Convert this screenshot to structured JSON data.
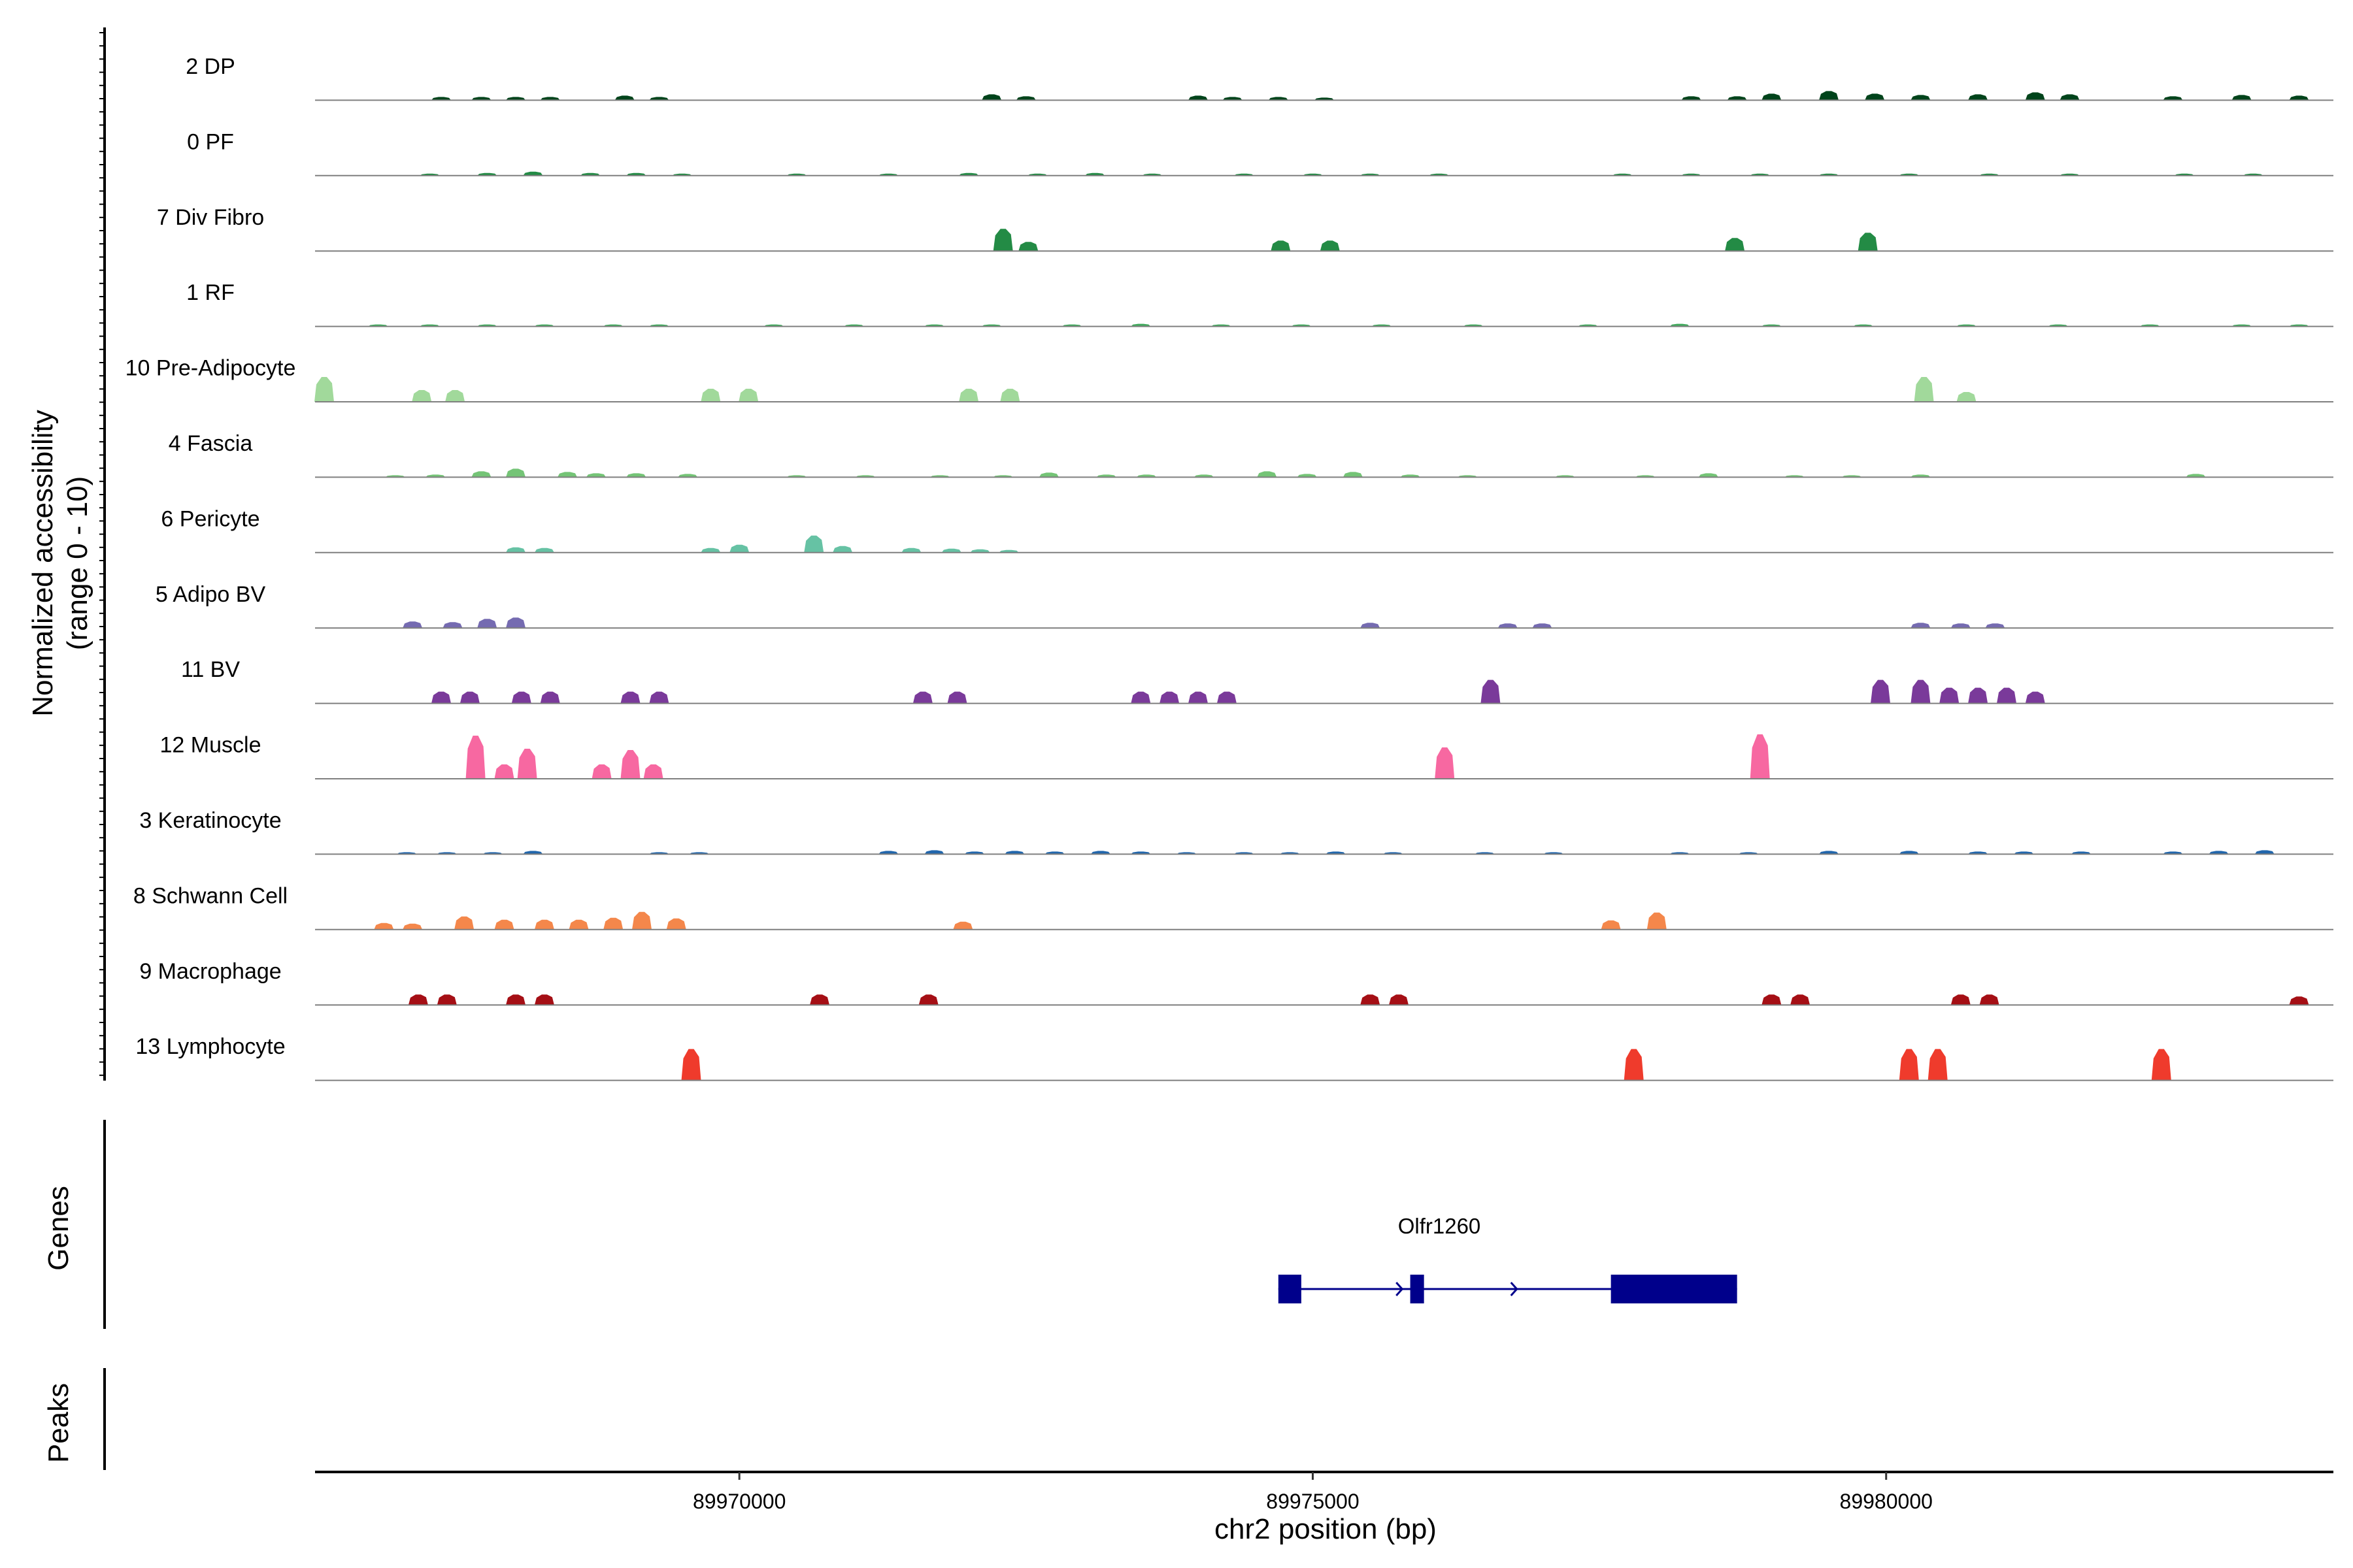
{
  "chart_data": {
    "type": "area",
    "title": "",
    "xlabel": "chr2 position (bp)",
    "ylabel_line1": "Normalized accessibility",
    "ylabel_line2": "(range 0 - 10)",
    "xlim": [
      89966300,
      89983900
    ],
    "ylim": [
      0,
      10
    ],
    "x_ticks": [
      {
        "value": 89970000,
        "label": "89970000"
      },
      {
        "value": 89975000,
        "label": "89975000"
      },
      {
        "value": 89980000,
        "label": "89980000"
      }
    ],
    "series": [
      {
        "name": "2 DP",
        "color": "#00441b",
        "peaks": [
          [
            89967400,
            0.5
          ],
          [
            89967750,
            0.5
          ],
          [
            89968050,
            0.5
          ],
          [
            89968350,
            0.5
          ],
          [
            89969000,
            0.7
          ],
          [
            89969300,
            0.5
          ],
          [
            89972200,
            0.9
          ],
          [
            89972500,
            0.6
          ],
          [
            89974000,
            0.7
          ],
          [
            89974300,
            0.5
          ],
          [
            89974700,
            0.5
          ],
          [
            89975100,
            0.4
          ],
          [
            89978300,
            0.6
          ],
          [
            89978700,
            0.6
          ],
          [
            89979000,
            1.0
          ],
          [
            89979500,
            1.4
          ],
          [
            89979900,
            1.0
          ],
          [
            89980300,
            0.8
          ],
          [
            89980800,
            0.9
          ],
          [
            89981300,
            1.2
          ],
          [
            89981600,
            0.9
          ],
          [
            89982500,
            0.6
          ],
          [
            89983100,
            0.8
          ],
          [
            89983600,
            0.7
          ]
        ]
      },
      {
        "name": "0 PF",
        "color": "#238b45",
        "peaks": [
          [
            89967300,
            0.3
          ],
          [
            89967800,
            0.4
          ],
          [
            89968200,
            0.6
          ],
          [
            89968700,
            0.4
          ],
          [
            89969100,
            0.4
          ],
          [
            89969500,
            0.3
          ],
          [
            89970500,
            0.3
          ],
          [
            89971300,
            0.3
          ],
          [
            89972000,
            0.4
          ],
          [
            89972600,
            0.3
          ],
          [
            89973100,
            0.4
          ],
          [
            89973600,
            0.3
          ],
          [
            89974400,
            0.3
          ],
          [
            89975000,
            0.3
          ],
          [
            89975500,
            0.3
          ],
          [
            89976100,
            0.3
          ],
          [
            89977700,
            0.3
          ],
          [
            89978300,
            0.3
          ],
          [
            89978900,
            0.3
          ],
          [
            89979500,
            0.3
          ],
          [
            89980200,
            0.3
          ],
          [
            89980900,
            0.3
          ],
          [
            89981600,
            0.3
          ],
          [
            89982600,
            0.3
          ],
          [
            89983200,
            0.3
          ]
        ]
      },
      {
        "name": "7 Div Fibro",
        "color": "#238b45",
        "peaks": [
          [
            89972300,
            3.4
          ],
          [
            89972520,
            1.4
          ],
          [
            89974720,
            1.6
          ],
          [
            89975150,
            1.6
          ],
          [
            89978680,
            2.0
          ],
          [
            89979840,
            2.8
          ]
        ]
      },
      {
        "name": "1 RF",
        "color": "#41ab5d",
        "peaks": [
          [
            89966850,
            0.3
          ],
          [
            89967300,
            0.3
          ],
          [
            89967800,
            0.3
          ],
          [
            89968300,
            0.3
          ],
          [
            89968900,
            0.3
          ],
          [
            89969300,
            0.3
          ],
          [
            89970300,
            0.3
          ],
          [
            89971000,
            0.3
          ],
          [
            89971700,
            0.3
          ],
          [
            89972200,
            0.3
          ],
          [
            89972900,
            0.3
          ],
          [
            89973500,
            0.4
          ],
          [
            89974200,
            0.3
          ],
          [
            89974900,
            0.3
          ],
          [
            89975600,
            0.3
          ],
          [
            89976400,
            0.3
          ],
          [
            89977400,
            0.3
          ],
          [
            89978200,
            0.4
          ],
          [
            89979000,
            0.3
          ],
          [
            89979800,
            0.3
          ],
          [
            89980700,
            0.3
          ],
          [
            89981500,
            0.3
          ],
          [
            89982300,
            0.3
          ],
          [
            89983100,
            0.3
          ],
          [
            89983600,
            0.3
          ]
        ]
      },
      {
        "name": "10 Pre-Adipocyte",
        "color": "#a1d99b",
        "peaks": [
          [
            89966380,
            3.8
          ],
          [
            89967230,
            1.8
          ],
          [
            89967520,
            1.8
          ],
          [
            89969750,
            2.0
          ],
          [
            89970080,
            2.0
          ],
          [
            89972000,
            2.0
          ],
          [
            89972360,
            2.0
          ],
          [
            89980330,
            3.8
          ],
          [
            89980700,
            1.5
          ]
        ]
      },
      {
        "name": "4 Fascia",
        "color": "#74c476",
        "peaks": [
          [
            89967000,
            0.3
          ],
          [
            89967350,
            0.4
          ],
          [
            89967750,
            0.9
          ],
          [
            89968050,
            1.3
          ],
          [
            89968500,
            0.8
          ],
          [
            89968750,
            0.6
          ],
          [
            89969100,
            0.6
          ],
          [
            89969550,
            0.5
          ],
          [
            89970500,
            0.3
          ],
          [
            89971100,
            0.3
          ],
          [
            89971750,
            0.3
          ],
          [
            89972300,
            0.3
          ],
          [
            89972700,
            0.7
          ],
          [
            89973200,
            0.4
          ],
          [
            89973550,
            0.4
          ],
          [
            89974050,
            0.4
          ],
          [
            89974600,
            0.9
          ],
          [
            89974950,
            0.5
          ],
          [
            89975350,
            0.8
          ],
          [
            89975850,
            0.4
          ],
          [
            89976350,
            0.3
          ],
          [
            89977200,
            0.3
          ],
          [
            89977900,
            0.3
          ],
          [
            89978450,
            0.6
          ],
          [
            89979200,
            0.3
          ],
          [
            89979700,
            0.3
          ],
          [
            89980300,
            0.4
          ],
          [
            89982700,
            0.5
          ]
        ]
      },
      {
        "name": "6 Pericyte",
        "color": "#66c2a4",
        "peaks": [
          [
            89968050,
            0.8
          ],
          [
            89968300,
            0.7
          ],
          [
            89969750,
            0.7
          ],
          [
            89970000,
            1.2
          ],
          [
            89970650,
            2.6
          ],
          [
            89970900,
            1.0
          ],
          [
            89971500,
            0.7
          ],
          [
            89971850,
            0.6
          ],
          [
            89972100,
            0.5
          ],
          [
            89972350,
            0.4
          ]
        ]
      },
      {
        "name": "5 Adipo BV",
        "color": "#756bb1",
        "peaks": [
          [
            89967150,
            1.0
          ],
          [
            89967500,
            0.9
          ],
          [
            89967800,
            1.4
          ],
          [
            89968050,
            1.6
          ],
          [
            89975500,
            0.8
          ],
          [
            89976700,
            0.7
          ],
          [
            89977000,
            0.7
          ],
          [
            89980300,
            0.8
          ],
          [
            89980650,
            0.7
          ],
          [
            89980950,
            0.7
          ]
        ]
      },
      {
        "name": "11 BV",
        "color": "#7a3a9a",
        "peaks": [
          [
            89967400,
            1.8
          ],
          [
            89967650,
            1.8
          ],
          [
            89968100,
            1.8
          ],
          [
            89968350,
            1.8
          ],
          [
            89969050,
            1.8
          ],
          [
            89969300,
            1.8
          ],
          [
            89971600,
            1.8
          ],
          [
            89971900,
            1.8
          ],
          [
            89973500,
            1.8
          ],
          [
            89973750,
            1.8
          ],
          [
            89974000,
            1.8
          ],
          [
            89974250,
            1.8
          ],
          [
            89976550,
            3.6
          ],
          [
            89979950,
            3.6
          ],
          [
            89980300,
            3.6
          ],
          [
            89980550,
            2.4
          ],
          [
            89980800,
            2.4
          ],
          [
            89981050,
            2.4
          ],
          [
            89981300,
            1.8
          ]
        ]
      },
      {
        "name": "12 Muscle",
        "color": "#f768a1",
        "peaks": [
          [
            89967700,
            6.6
          ],
          [
            89967950,
            2.2
          ],
          [
            89968150,
            4.6
          ],
          [
            89968800,
            2.2
          ],
          [
            89969050,
            4.4
          ],
          [
            89969250,
            2.2
          ],
          [
            89976150,
            4.8
          ],
          [
            89978900,
            6.8
          ]
        ]
      },
      {
        "name": "3 Keratinocyte",
        "color": "#2166ac",
        "peaks": [
          [
            89967100,
            0.3
          ],
          [
            89967450,
            0.3
          ],
          [
            89967850,
            0.3
          ],
          [
            89968200,
            0.5
          ],
          [
            89969300,
            0.3
          ],
          [
            89969650,
            0.3
          ],
          [
            89971300,
            0.5
          ],
          [
            89971700,
            0.6
          ],
          [
            89972050,
            0.4
          ],
          [
            89972400,
            0.5
          ],
          [
            89972750,
            0.4
          ],
          [
            89973150,
            0.5
          ],
          [
            89973500,
            0.4
          ],
          [
            89973900,
            0.3
          ],
          [
            89974400,
            0.3
          ],
          [
            89974800,
            0.3
          ],
          [
            89975200,
            0.4
          ],
          [
            89975700,
            0.3
          ],
          [
            89976500,
            0.3
          ],
          [
            89977100,
            0.3
          ],
          [
            89978200,
            0.3
          ],
          [
            89978800,
            0.3
          ],
          [
            89979500,
            0.5
          ],
          [
            89980200,
            0.5
          ],
          [
            89980800,
            0.4
          ],
          [
            89981200,
            0.4
          ],
          [
            89981700,
            0.4
          ],
          [
            89982500,
            0.4
          ],
          [
            89982900,
            0.5
          ],
          [
            89983300,
            0.6
          ]
        ]
      },
      {
        "name": "8 Schwann Cell",
        "color": "#f4874b",
        "peaks": [
          [
            89966900,
            1.0
          ],
          [
            89967150,
            0.9
          ],
          [
            89967600,
            2.0
          ],
          [
            89967950,
            1.5
          ],
          [
            89968300,
            1.5
          ],
          [
            89968600,
            1.5
          ],
          [
            89968900,
            1.8
          ],
          [
            89969150,
            2.7
          ],
          [
            89969450,
            1.7
          ],
          [
            89971950,
            1.2
          ],
          [
            89977600,
            1.4
          ],
          [
            89978000,
            2.6
          ]
        ]
      },
      {
        "name": "9 Macrophage",
        "color": "#a50f15",
        "peaks": [
          [
            89967200,
            1.6
          ],
          [
            89967450,
            1.6
          ],
          [
            89968050,
            1.6
          ],
          [
            89968300,
            1.6
          ],
          [
            89970700,
            1.6
          ],
          [
            89971650,
            1.6
          ],
          [
            89975500,
            1.6
          ],
          [
            89975750,
            1.6
          ],
          [
            89979000,
            1.6
          ],
          [
            89979250,
            1.6
          ],
          [
            89980650,
            1.6
          ],
          [
            89980900,
            1.6
          ],
          [
            89983600,
            1.3
          ]
        ]
      },
      {
        "name": "13 Lymphocyte",
        "color": "#ef3b2c",
        "peaks": [
          [
            89969580,
            4.8
          ],
          [
            89977800,
            4.8
          ],
          [
            89980200,
            4.8
          ],
          [
            89980450,
            4.8
          ],
          [
            89982400,
            4.8
          ]
        ]
      }
    ],
    "genes": [
      {
        "name": "Olfr1260",
        "strand": "+",
        "start": 89974700,
        "end": 89978700,
        "color": "#00008b",
        "exons": [
          [
            89974700,
            89974900
          ],
          [
            89975850,
            89975970
          ],
          [
            89977600,
            89978700
          ]
        ]
      }
    ],
    "annotation_tracks": [
      "Genes",
      "Peaks"
    ],
    "grid": false,
    "legend": "none"
  }
}
